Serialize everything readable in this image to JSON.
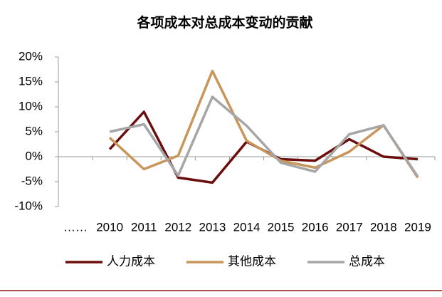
{
  "chart_data": {
    "type": "line",
    "title": "各项成本对总成本变动的贡献",
    "categories": [
      "……",
      "2010",
      "2011",
      "2012",
      "2013",
      "2014",
      "2015",
      "2016",
      "2017",
      "2018",
      "2019"
    ],
    "series": [
      {
        "name": "人力成本",
        "color": "#6b0d0d",
        "values": [
          null,
          1.5,
          9,
          -4.2,
          -5.2,
          3,
          -0.5,
          -0.8,
          3.5,
          0,
          -0.5
        ]
      },
      {
        "name": "其他成本",
        "color": "#c8955a",
        "values": [
          null,
          3.8,
          -2.5,
          0.2,
          17.2,
          3.2,
          -0.8,
          -2.2,
          1,
          6.3,
          -4.2
        ]
      },
      {
        "name": "总成本",
        "color": "#a6a6a6",
        "values": [
          null,
          5,
          6.5,
          -3.8,
          12,
          6.2,
          -1.2,
          -3,
          4.5,
          6.3,
          -4
        ]
      }
    ],
    "ylim": [
      -10,
      20
    ],
    "yticks": [
      {
        "value": -10,
        "label": "-10%"
      },
      {
        "value": -5,
        "label": "-5%"
      },
      {
        "value": 0,
        "label": "0%"
      },
      {
        "value": 5,
        "label": "5%"
      },
      {
        "value": 10,
        "label": "10%"
      },
      {
        "value": 15,
        "label": "15%"
      },
      {
        "value": 20,
        "label": "20%"
      }
    ],
    "legend": "bottom"
  }
}
